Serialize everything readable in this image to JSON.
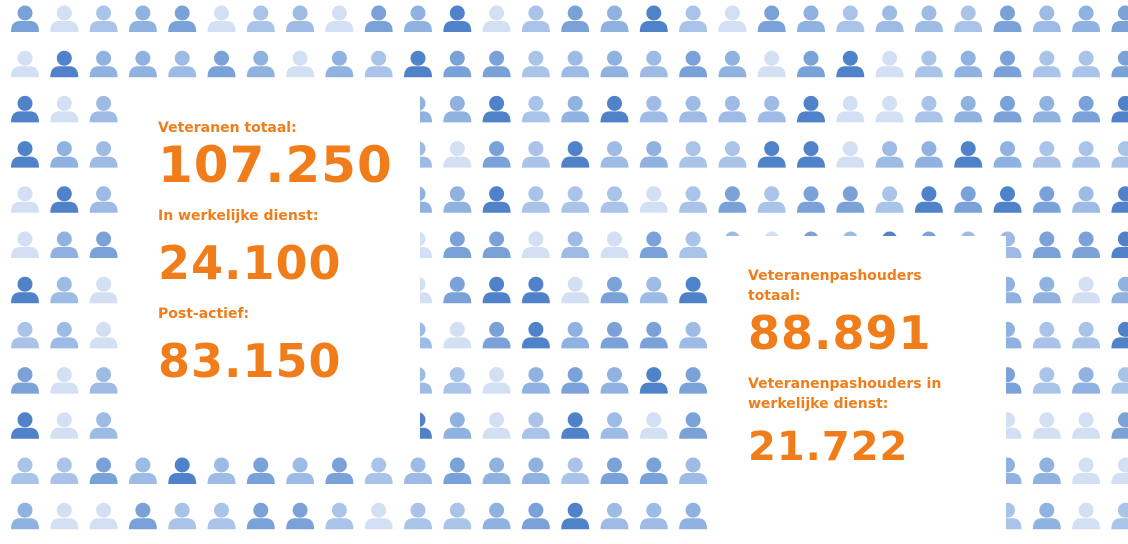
{
  "left_panel": {
    "items": [
      {
        "label": "Veteranen totaal:",
        "value": "107.250"
      },
      {
        "label": "In werkelijke dienst:",
        "value": "24.100"
      },
      {
        "label": "Post-actief:",
        "value": "83.150"
      }
    ]
  },
  "right_panel": {
    "items": [
      {
        "label": "Veteranenpashouders totaal:",
        "value": "88.891"
      },
      {
        "label": "Veteranenpashouders in werkelijke dienst:",
        "value": "21.722"
      }
    ]
  }
}
